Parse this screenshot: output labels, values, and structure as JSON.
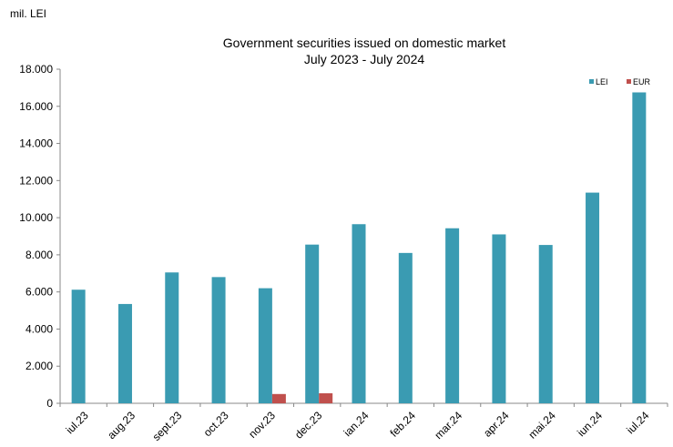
{
  "unit_label": "mil. LEI",
  "chart_data": {
    "type": "bar",
    "title": "Government securities issued on domestic market",
    "subtitle": "July 2023 - July 2024",
    "categories": [
      "iul.23",
      "aug.23",
      "sept.23",
      "oct.23",
      "nov.23",
      "dec.23",
      "ian.24",
      "feb.24",
      "mar.24",
      "apr.24",
      "mai.24",
      "iun.24",
      "iul.24"
    ],
    "series": [
      {
        "name": "LEI",
        "color": "#3a9bb2",
        "values": [
          6120,
          5350,
          7050,
          6800,
          6200,
          8550,
          9650,
          8100,
          9430,
          9100,
          8530,
          11350,
          16750
        ]
      },
      {
        "name": "EUR",
        "color": "#c0504d",
        "values": [
          0,
          0,
          0,
          0,
          500,
          540,
          0,
          0,
          0,
          0,
          0,
          0,
          0
        ]
      }
    ],
    "ylim": [
      0,
      18000
    ],
    "yticks": [
      0,
      2000,
      4000,
      6000,
      8000,
      10000,
      12000,
      14000,
      16000,
      18000
    ],
    "ytick_labels": [
      "0",
      "2.000",
      "4.000",
      "6.000",
      "8.000",
      "10.000",
      "12.000",
      "14.000",
      "16.000",
      "18.000"
    ],
    "legend_position": "top-right",
    "grid": false
  }
}
